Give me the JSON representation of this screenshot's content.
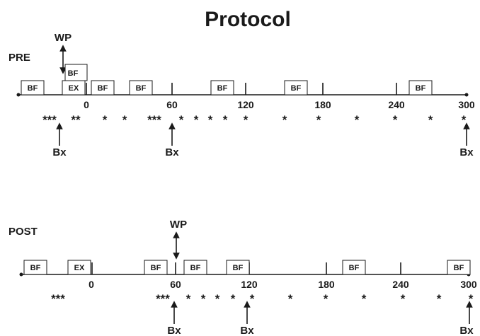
{
  "title": "Protocol",
  "tick_labels": [
    "0",
    "60",
    "120",
    "180",
    "240",
    "300"
  ],
  "timelines": [
    {
      "label": "PRE",
      "boxes": [
        "BF",
        "EX",
        "BF",
        "BF",
        "BF",
        "BF",
        "BF",
        "BF"
      ],
      "wp_label": "WP",
      "stars": [
        "***",
        "**",
        "*",
        "*",
        "***",
        "*",
        "*",
        "*",
        "*",
        "*",
        "*",
        "*",
        "*",
        "*",
        "*",
        "*"
      ],
      "bx": [
        "Bx",
        "Bx",
        "Bx"
      ]
    },
    {
      "label": "POST",
      "boxes": [
        "BF",
        "EX",
        "BF",
        "BF",
        "BF",
        "BF",
        "BF"
      ],
      "wp_label": "WP",
      "stars": [
        "***",
        "***",
        "*",
        "*",
        "*",
        "*",
        "*",
        "*",
        "*",
        "*",
        "*",
        "*",
        "*"
      ],
      "bx": [
        "Bx",
        "Bx",
        "Bx"
      ]
    }
  ]
}
